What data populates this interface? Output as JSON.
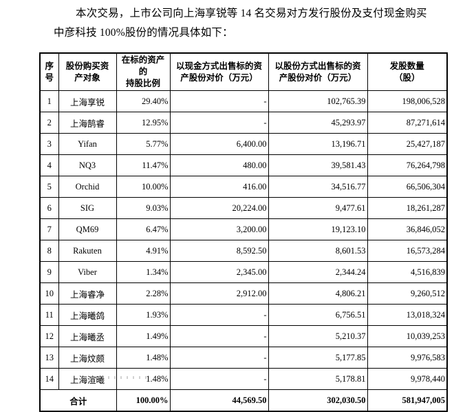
{
  "intro": {
    "line1": "本次交易，上市公司向上海享锐等 14 名交易对方发行股份及支付现金购买",
    "line2": "中彦科技 100%股份的情况具体如下："
  },
  "table": {
    "headers": [
      "序\n号",
      "股份购买资\n产对象",
      "在标的资产的\n持股比例",
      "以现金方式出售标的资\n产股份对价（万元）",
      "以股份方式出售标的资\n产股份对价（万元）",
      "发股数量\n（股）"
    ],
    "rows": [
      {
        "no": "1",
        "name": "上海享锐",
        "ratio": "29.40%",
        "cash": "-",
        "share": "102,765.39",
        "shares": "198,006,528"
      },
      {
        "no": "2",
        "name": "上海鹄睿",
        "ratio": "12.95%",
        "cash": "-",
        "share": "45,293.97",
        "shares": "87,271,614"
      },
      {
        "no": "3",
        "name": "Yifan",
        "ratio": "5.77%",
        "cash": "6,400.00",
        "share": "13,196.71",
        "shares": "25,427,187"
      },
      {
        "no": "4",
        "name": "NQ3",
        "ratio": "11.47%",
        "cash": "480.00",
        "share": "39,581.43",
        "shares": "76,264,798"
      },
      {
        "no": "5",
        "name": "Orchid",
        "ratio": "10.00%",
        "cash": "416.00",
        "share": "34,516.77",
        "shares": "66,506,304"
      },
      {
        "no": "6",
        "name": "SIG",
        "ratio": "9.03%",
        "cash": "20,224.00",
        "share": "9,477.61",
        "shares": "18,261,287"
      },
      {
        "no": "7",
        "name": "QM69",
        "ratio": "6.47%",
        "cash": "3,200.00",
        "share": "19,123.10",
        "shares": "36,846,052"
      },
      {
        "no": "8",
        "name": "Rakuten",
        "ratio": "4.91%",
        "cash": "8,592.50",
        "share": "8,601.53",
        "shares": "16,573,284"
      },
      {
        "no": "9",
        "name": "Viber",
        "ratio": "1.34%",
        "cash": "2,345.00",
        "share": "2,344.24",
        "shares": "4,516,839"
      },
      {
        "no": "10",
        "name": "上海睿净",
        "ratio": "2.28%",
        "cash": "2,912.00",
        "share": "4,806.21",
        "shares": "9,260,512"
      },
      {
        "no": "11",
        "name": "上海曦鸽",
        "ratio": "1.93%",
        "cash": "-",
        "share": "6,756.51",
        "shares": "13,018,324"
      },
      {
        "no": "12",
        "name": "上海曦丞",
        "ratio": "1.49%",
        "cash": "-",
        "share": "5,210.37",
        "shares": "10,039,253"
      },
      {
        "no": "13",
        "name": "上海炆颇",
        "ratio": "1.48%",
        "cash": "-",
        "share": "5,177.85",
        "shares": "9,976,583"
      },
      {
        "no": "14",
        "name": "上海渲曦",
        "ratio": "1.48%",
        "cash": "-",
        "share": "5,178.81",
        "shares": "9,978,440"
      }
    ],
    "total": {
      "label": "合计",
      "ratio": "100.00%",
      "cash": "44,569.50",
      "share": "302,030.50",
      "shares": "581,947,005"
    }
  }
}
